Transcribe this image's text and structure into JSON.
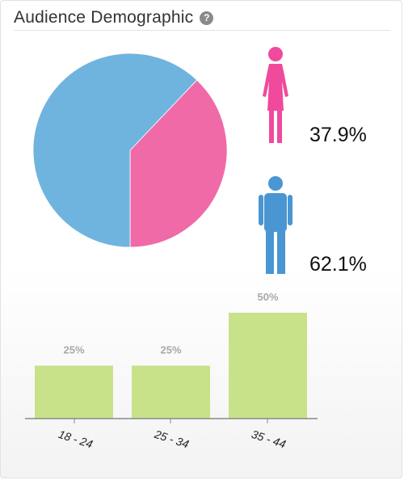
{
  "header": {
    "title": "Audience Demographic",
    "help_icon": "question-circle-icon"
  },
  "gender": {
    "female": {
      "label": "37.9%",
      "value": 37.9,
      "color": "#f06aa8",
      "icon": "female-figure-icon"
    },
    "male": {
      "label": "62.1%",
      "value": 62.1,
      "color": "#6fb4de",
      "icon": "male-figure-icon"
    }
  },
  "colors": {
    "bar": "#c8e28a",
    "axis": "#888888"
  },
  "chart_data": [
    {
      "type": "pie",
      "categories": [
        "Female",
        "Male"
      ],
      "values": [
        37.9,
        62.1
      ],
      "labels": [
        "37.9%",
        "62.1%"
      ],
      "colors": [
        "#f06aa8",
        "#6fb4de"
      ]
    },
    {
      "type": "bar",
      "categories": [
        "18 - 24",
        "25 - 34",
        "35 - 44"
      ],
      "values": [
        25,
        25,
        50
      ],
      "labels": [
        "25%",
        "25%",
        "50%"
      ],
      "ylim": [
        0,
        50
      ],
      "color": "#c8e28a"
    }
  ]
}
